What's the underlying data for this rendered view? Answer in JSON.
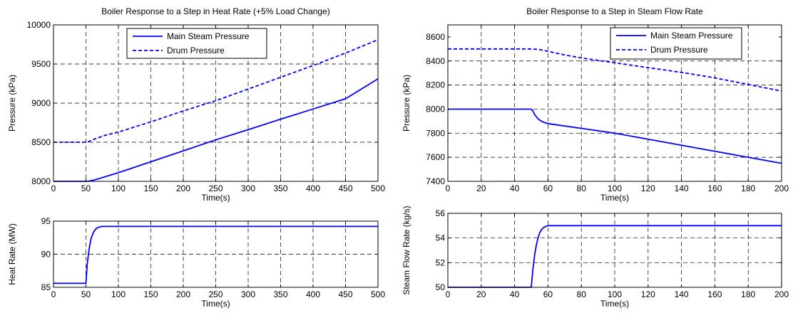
{
  "chart_data": [
    {
      "type": "line",
      "title": "Boiler Response to a Step in Heat Rate (+5% Load Change)",
      "xlabel": "Time(s)",
      "ylabel": "Pressure (kPa)",
      "xlim": [
        0,
        500
      ],
      "ylim": [
        8000,
        10000
      ],
      "xticks": [
        0,
        50,
        100,
        150,
        200,
        250,
        300,
        350,
        400,
        450,
        500
      ],
      "yticks": [
        8000,
        8500,
        9000,
        9500,
        10000
      ],
      "grid": true,
      "legend": "top-center",
      "series": [
        {
          "name": "Main Steam Pressure",
          "style": "solid",
          "color": "#0000ff",
          "x": [
            0,
            50,
            55,
            60,
            70,
            80,
            100,
            150,
            200,
            250,
            300,
            350,
            400,
            450,
            500
          ],
          "y": [
            8000,
            8000,
            8003,
            8012,
            8035,
            8060,
            8110,
            8250,
            8390,
            8530,
            8660,
            8795,
            8925,
            9055,
            9310
          ]
        },
        {
          "name": "Drum Pressure",
          "style": "dashed",
          "color": "#0000ff",
          "x": [
            0,
            50,
            55,
            60,
            70,
            80,
            100,
            150,
            200,
            250,
            300,
            350,
            400,
            450,
            500
          ],
          "y": [
            8500,
            8500,
            8510,
            8530,
            8560,
            8590,
            8630,
            8760,
            8900,
            9030,
            9180,
            9330,
            9480,
            9640,
            9810
          ]
        }
      ]
    },
    {
      "type": "line",
      "title": "",
      "xlabel": "Time(s)",
      "ylabel": "Heat Rate (MW)",
      "xlim": [
        0,
        500
      ],
      "ylim": [
        85,
        95
      ],
      "xticks": [
        0,
        50,
        100,
        150,
        200,
        250,
        300,
        350,
        400,
        450,
        500
      ],
      "yticks": [
        85,
        90,
        95
      ],
      "grid": true,
      "series": [
        {
          "style": "solid",
          "color": "#0000ff",
          "x": [
            0,
            50,
            52,
            55,
            58,
            62,
            66,
            70,
            75,
            80,
            500
          ],
          "y": [
            85.6,
            85.6,
            88.5,
            90.8,
            92.4,
            93.4,
            93.9,
            94.1,
            94.2,
            94.2,
            94.2
          ]
        }
      ]
    },
    {
      "type": "line",
      "title": "Boiler Response to a Step in Steam Flow Rate",
      "xlabel": "Time(s)",
      "ylabel": "Pressure (kPa)",
      "xlim": [
        0,
        200
      ],
      "ylim": [
        7400,
        8700
      ],
      "xticks": [
        0,
        20,
        40,
        60,
        80,
        100,
        120,
        140,
        160,
        180,
        200
      ],
      "yticks": [
        7400,
        7600,
        7800,
        8000,
        8200,
        8400,
        8600
      ],
      "grid": true,
      "legend": "top-right",
      "series": [
        {
          "name": "Main Steam Pressure",
          "style": "solid",
          "color": "#0000ff",
          "x": [
            0,
            50,
            51,
            52,
            54,
            56,
            58,
            60,
            70,
            80,
            100,
            120,
            140,
            160,
            180,
            200
          ],
          "y": [
            8000,
            8000,
            7985,
            7955,
            7920,
            7900,
            7888,
            7880,
            7860,
            7840,
            7800,
            7750,
            7700,
            7650,
            7600,
            7550
          ]
        },
        {
          "name": "Drum Pressure",
          "style": "dashed",
          "color": "#0000ff",
          "x": [
            0,
            50,
            55,
            60,
            70,
            80,
            100,
            120,
            140,
            160,
            180,
            200
          ],
          "y": [
            8500,
            8500,
            8495,
            8480,
            8450,
            8425,
            8385,
            8345,
            8305,
            8260,
            8205,
            8150
          ]
        }
      ]
    },
    {
      "type": "line",
      "title": "",
      "xlabel": "Time(s)",
      "ylabel": "Steam Flow Rate (kg/s)",
      "xlim": [
        0,
        200
      ],
      "ylim": [
        50,
        56
      ],
      "xticks": [
        0,
        20,
        40,
        60,
        80,
        100,
        120,
        140,
        160,
        180,
        200
      ],
      "yticks": [
        50,
        52,
        54,
        56
      ],
      "grid": true,
      "series": [
        {
          "style": "solid",
          "color": "#0000ff",
          "x": [
            0,
            50,
            51,
            52,
            53,
            54,
            55,
            56,
            57,
            58,
            60,
            200
          ],
          "y": [
            50,
            50,
            51.5,
            52.6,
            53.4,
            54.0,
            54.4,
            54.65,
            54.8,
            54.9,
            55,
            55
          ]
        }
      ]
    }
  ]
}
